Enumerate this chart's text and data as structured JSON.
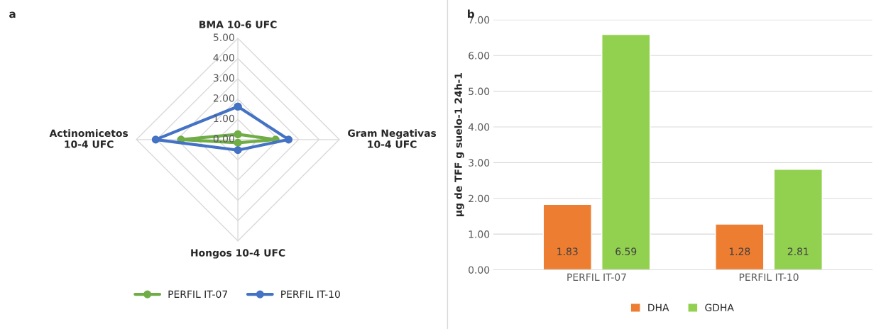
{
  "chart_data": [
    {
      "type": "radar",
      "title": "a",
      "categories": [
        "BMA 10-6 UFC",
        "Gram Negativas\n10-4 UFC",
        "Hongos 10-4 UFC",
        "Actinomicetos\n10-4 UFC"
      ],
      "series": [
        {
          "name": "PERFIL IT-07",
          "color": "#70ad47",
          "values": [
            0.26,
            1.86,
            0.16,
            2.8
          ]
        },
        {
          "name": "PERFIL IT-10",
          "color": "#4472c4",
          "values": [
            1.63,
            2.5,
            0.52,
            4.05
          ]
        }
      ],
      "ylim": [
        0,
        5
      ],
      "yticks": [
        {
          "value": 0,
          "label": "0.00"
        },
        {
          "value": 1,
          "label": "1.00"
        },
        {
          "value": 2,
          "label": "2.00"
        },
        {
          "value": 3,
          "label": "3.00"
        },
        {
          "value": 4,
          "label": "4.00"
        },
        {
          "value": 5,
          "label": "5.00"
        }
      ],
      "marker": "circle",
      "legend": "bottom",
      "grid": true
    },
    {
      "type": "bar",
      "title": "b",
      "categories": [
        "PERFIL IT-07",
        "PERFIL IT-10"
      ],
      "series": [
        {
          "name": "DHA",
          "color": "#ed7d31",
          "values": [
            1.83,
            1.28
          ]
        },
        {
          "name": "GDHA",
          "color": "#92d050",
          "values": [
            6.59,
            2.81
          ]
        }
      ],
      "ylabel": "µg de TFF g suelo-1 24h-1",
      "ylim": [
        0,
        7
      ],
      "yticks": [
        {
          "value": 0,
          "label": "0.00"
        },
        {
          "value": 1,
          "label": "1.00"
        },
        {
          "value": 2,
          "label": "2.00"
        },
        {
          "value": 3,
          "label": "3.00"
        },
        {
          "value": 4,
          "label": "4.00"
        },
        {
          "value": 5,
          "label": "5.00"
        },
        {
          "value": 6,
          "label": "6.00"
        },
        {
          "value": 7,
          "label": "7.00"
        }
      ],
      "data_labels": true,
      "legend": "bottom",
      "grid": "y"
    }
  ]
}
